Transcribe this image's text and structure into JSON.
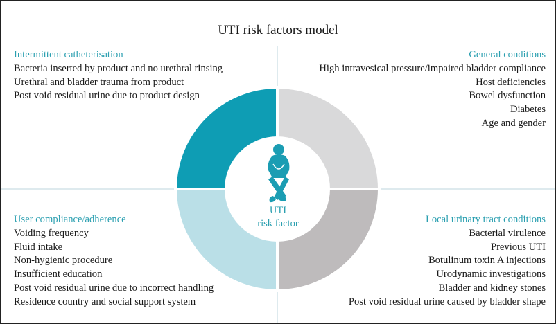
{
  "title": "UTI risk factors model",
  "center": {
    "line1": "UTI",
    "line2": "risk factor",
    "icon": "person-holding-bladder-icon"
  },
  "colors": {
    "accent": "#2a9fb0",
    "q_top_left": "#0e9db4",
    "q_top_right": "#d9d9da",
    "q_bottom_left": "#badfe7",
    "q_bottom_right": "#bebbbc"
  },
  "quadrants": {
    "top_left": {
      "heading": "Intermittent catheterisation",
      "items": [
        "Bacteria inserted by product and no urethral rinsing",
        "Urethral and bladder trauma from product",
        "Post void residual urine due to product design"
      ]
    },
    "top_right": {
      "heading": "General conditions",
      "items": [
        "High intravesical pressure/impaired bladder compliance",
        "Host deficiencies",
        "Bowel dysfunction",
        "Diabetes",
        "Age and gender"
      ]
    },
    "bottom_left": {
      "heading": "User compliance/adherence",
      "items": [
        "Voiding frequency",
        "Fluid intake",
        "Non-hygienic procedure",
        "Insufficient education",
        "Post void residual urine due to incorrect handling",
        "Residence country and social support system"
      ]
    },
    "bottom_right": {
      "heading": "Local urinary tract conditions",
      "items": [
        "Bacterial virulence",
        "Previous UTI",
        "Botulinum toxin A injections",
        "Urodynamic investigations",
        "Bladder and kidney stones",
        "Post void residual urine caused by bladder shape"
      ]
    }
  }
}
